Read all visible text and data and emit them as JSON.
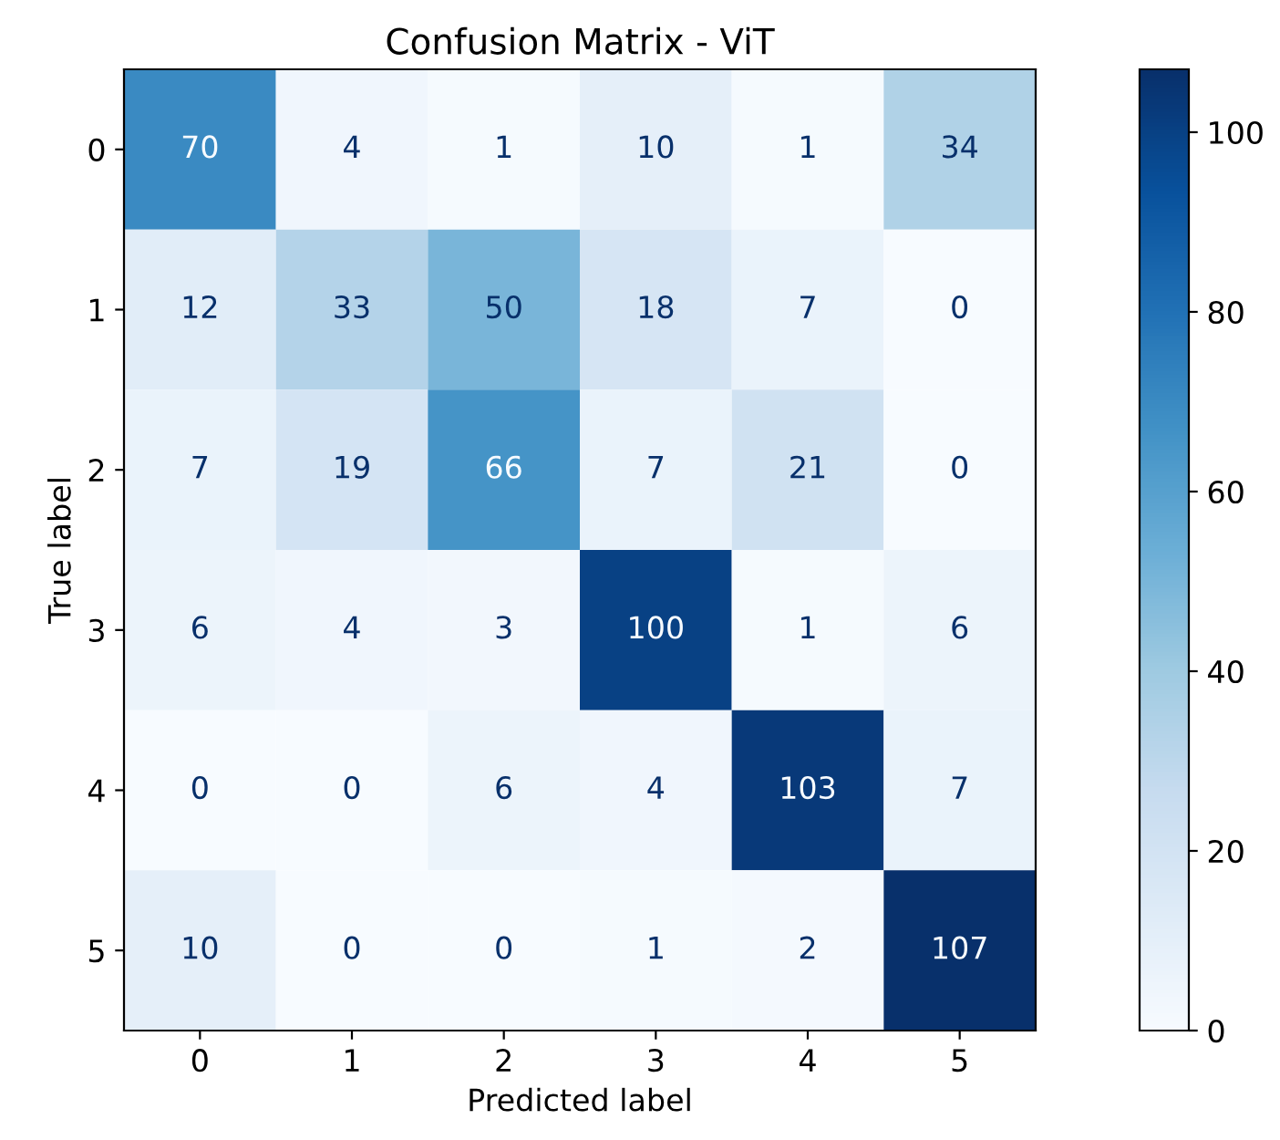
{
  "chart_data": {
    "type": "heatmap",
    "title": "Confusion Matrix - ViT",
    "xlabel": "Predicted label",
    "ylabel": "True label",
    "categories": [
      "0",
      "1",
      "2",
      "3",
      "4",
      "5"
    ],
    "y_categories": [
      "0",
      "1",
      "2",
      "3",
      "4",
      "5"
    ],
    "cells": [
      [
        70,
        4,
        1,
        10,
        1,
        34
      ],
      [
        12,
        33,
        50,
        18,
        7,
        0
      ],
      [
        7,
        19,
        66,
        7,
        21,
        0
      ],
      [
        6,
        4,
        3,
        100,
        1,
        6
      ],
      [
        0,
        0,
        6,
        4,
        103,
        7
      ],
      [
        10,
        0,
        0,
        1,
        2,
        107
      ]
    ],
    "clim": [
      0,
      107
    ],
    "cticks": [
      0,
      20,
      40,
      60,
      80,
      100
    ],
    "data_labels": true,
    "grid": false
  }
}
